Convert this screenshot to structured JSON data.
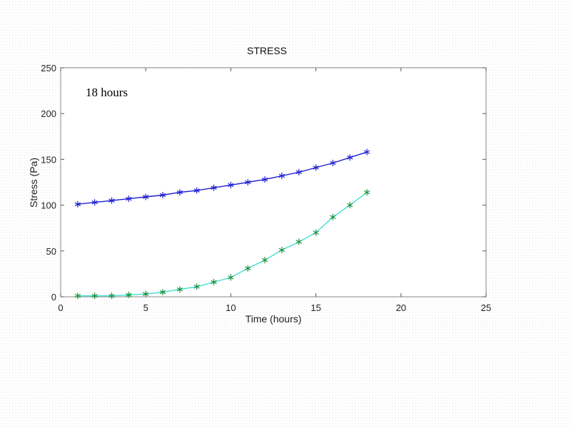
{
  "chart_data": {
    "type": "line",
    "title": "STRESS",
    "xlabel": "Time (hours)",
    "ylabel": "Stress (Pa)",
    "xlim": [
      0,
      25
    ],
    "ylim": [
      0,
      250
    ],
    "xticks": [
      0,
      5,
      10,
      15,
      20,
      25
    ],
    "yticks": [
      0,
      50,
      100,
      150,
      200,
      250
    ],
    "grid": false,
    "annotation": "18 hours",
    "series": [
      {
        "color": "#1f1fd2",
        "marker": "asterisk",
        "marker_color": "#1f1fd2",
        "x": [
          1,
          2,
          3,
          4,
          5,
          6,
          7,
          8,
          9,
          10,
          11,
          12,
          13,
          14,
          15,
          16,
          17,
          18
        ],
        "y": [
          101,
          103,
          105,
          107,
          109,
          111,
          114,
          116,
          119,
          122,
          125,
          128,
          132,
          136,
          141,
          146,
          152,
          158
        ]
      },
      {
        "color": "#40e0d0",
        "marker": "asterisk",
        "marker_color": "#1a8f3c",
        "x": [
          1,
          2,
          3,
          4,
          5,
          6,
          7,
          8,
          9,
          10,
          11,
          12,
          13,
          14,
          15,
          16,
          17,
          18
        ],
        "y": [
          1,
          1,
          1,
          2,
          3,
          5,
          8,
          11,
          16,
          21,
          31,
          40,
          51,
          60,
          70,
          87,
          100,
          114
        ]
      }
    ]
  }
}
